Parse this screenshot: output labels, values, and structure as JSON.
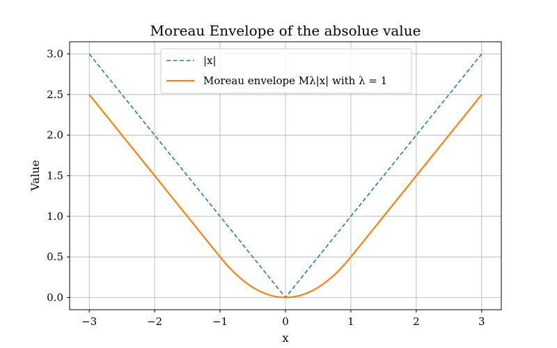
{
  "chart_data": {
    "type": "line",
    "title": "Moreau Envelope of the absolue value",
    "xlabel": "x",
    "ylabel": "Value",
    "xlim": [
      -3.3,
      3.3
    ],
    "ylim": [
      -0.15,
      3.15
    ],
    "x_ticks": [
      -3,
      -2,
      -1,
      0,
      1,
      2,
      3
    ],
    "x_tick_labels": [
      "−3",
      "−2",
      "−1",
      "0",
      "1",
      "2",
      "3"
    ],
    "y_ticks": [
      0.0,
      0.5,
      1.0,
      1.5,
      2.0,
      2.5,
      3.0
    ],
    "y_tick_labels": [
      "0.0",
      "0.5",
      "1.0",
      "1.5",
      "2.0",
      "2.5",
      "3.0"
    ],
    "grid": true,
    "legend_position": "top-center",
    "series": [
      {
        "name": "|x|",
        "color": "#1f77b4",
        "style": "dashed",
        "x": [
          -3,
          -2.5,
          -2,
          -1.5,
          -1,
          -0.5,
          0,
          0.5,
          1,
          1.5,
          2,
          2.5,
          3
        ],
        "y": [
          3,
          2.5,
          2,
          1.5,
          1,
          0.5,
          0,
          0.5,
          1,
          1.5,
          2,
          2.5,
          3
        ]
      },
      {
        "name": "Moreau envelope Mλ|x| with λ = 1",
        "color": "#ff7f0e",
        "style": "solid",
        "x": [
          -3,
          -2.5,
          -2,
          -1.5,
          -1,
          -0.9,
          -0.8,
          -0.7,
          -0.6,
          -0.5,
          -0.4,
          -0.3,
          -0.2,
          -0.1,
          0,
          0.1,
          0.2,
          0.3,
          0.4,
          0.5,
          0.6,
          0.7,
          0.8,
          0.9,
          1,
          1.5,
          2,
          2.5,
          3
        ],
        "y": [
          2.5,
          2,
          1.5,
          1,
          0.5,
          0.405,
          0.32,
          0.245,
          0.18,
          0.125,
          0.08,
          0.045,
          0.02,
          0.005,
          0,
          0.005,
          0.02,
          0.045,
          0.08,
          0.125,
          0.18,
          0.245,
          0.32,
          0.405,
          0.5,
          1,
          1.5,
          2,
          2.5
        ]
      }
    ]
  }
}
